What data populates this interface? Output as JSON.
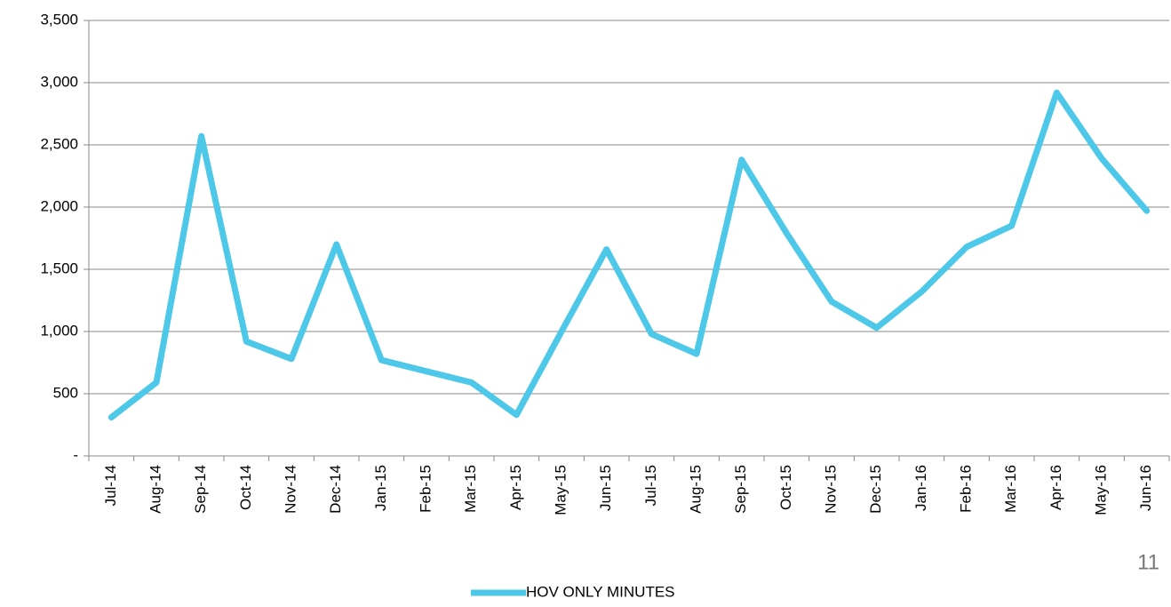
{
  "chart_data": {
    "type": "line",
    "categories": [
      "Jul-14",
      "Aug-14",
      "Sep-14",
      "Oct-14",
      "Nov-14",
      "Dec-14",
      "Jan-15",
      "Feb-15",
      "Mar-15",
      "Apr-15",
      "May-15",
      "Jun-15",
      "Jul-15",
      "Aug-15",
      "Sep-15",
      "Oct-15",
      "Nov-15",
      "Dec-15",
      "Jan-16",
      "Feb-16",
      "Mar-16",
      "Apr-16",
      "May-16",
      "Jun-16"
    ],
    "series": [
      {
        "name": "HOV ONLY MINUTES",
        "color": "#4dc8e9",
        "values": [
          310,
          590,
          2570,
          920,
          780,
          1700,
          770,
          680,
          590,
          330,
          1000,
          1660,
          980,
          820,
          2380,
          1790,
          1240,
          1030,
          1320,
          1680,
          1850,
          2920,
          2390,
          1970
        ]
      }
    ],
    "ylim": [
      0,
      3500
    ],
    "yticks": [
      {
        "value": 0,
        "label": "-"
      },
      500,
      {
        "value": 1000,
        "label": "1,000"
      },
      {
        "value": 1500,
        "label": "1,500"
      },
      {
        "value": 2000,
        "label": "2,000"
      },
      {
        "value": 2500,
        "label": "2,500"
      },
      {
        "value": 3000,
        "label": "3,000"
      },
      {
        "value": 3500,
        "label": "3,500"
      }
    ],
    "grid": true,
    "legend": "bottom",
    "page_number": "11"
  }
}
